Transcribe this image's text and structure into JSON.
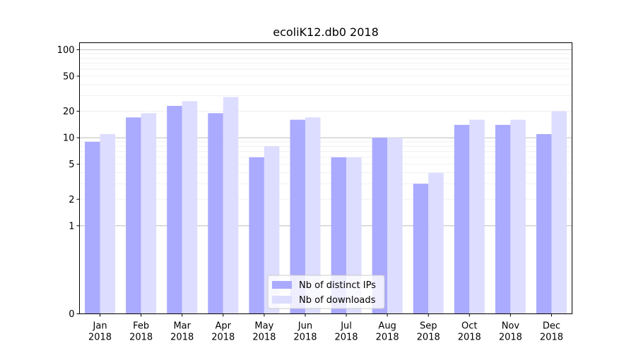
{
  "chart_data": {
    "type": "bar",
    "title": "ecoliK12.db0 2018",
    "xlabel": "",
    "ylabel": "",
    "y_scale": "symlog",
    "ylim": [
      0,
      120
    ],
    "y_ticks": [
      0,
      1,
      2,
      5,
      10,
      20,
      50,
      100
    ],
    "y_tick_labels": [
      "0",
      "1",
      "2",
      "5",
      "10",
      "20",
      "50",
      "100"
    ],
    "categories": [
      "Jan",
      "Feb",
      "Mar",
      "Apr",
      "May",
      "Jun",
      "Jul",
      "Aug",
      "Sep",
      "Oct",
      "Nov",
      "Dec"
    ],
    "category_sublabel": "2018",
    "series": [
      {
        "name": "Nb of distinct IPs",
        "color": "#aaaaff",
        "values": [
          9,
          17,
          23,
          19,
          6,
          16,
          6,
          10,
          3,
          14,
          14,
          11
        ]
      },
      {
        "name": "Nb of downloads",
        "color": "#ddddff",
        "values": [
          11,
          19,
          26,
          29,
          8,
          17,
          6,
          10,
          4,
          16,
          16,
          20
        ]
      }
    ],
    "legend": {
      "position": "bottom-center"
    },
    "grid": true
  }
}
